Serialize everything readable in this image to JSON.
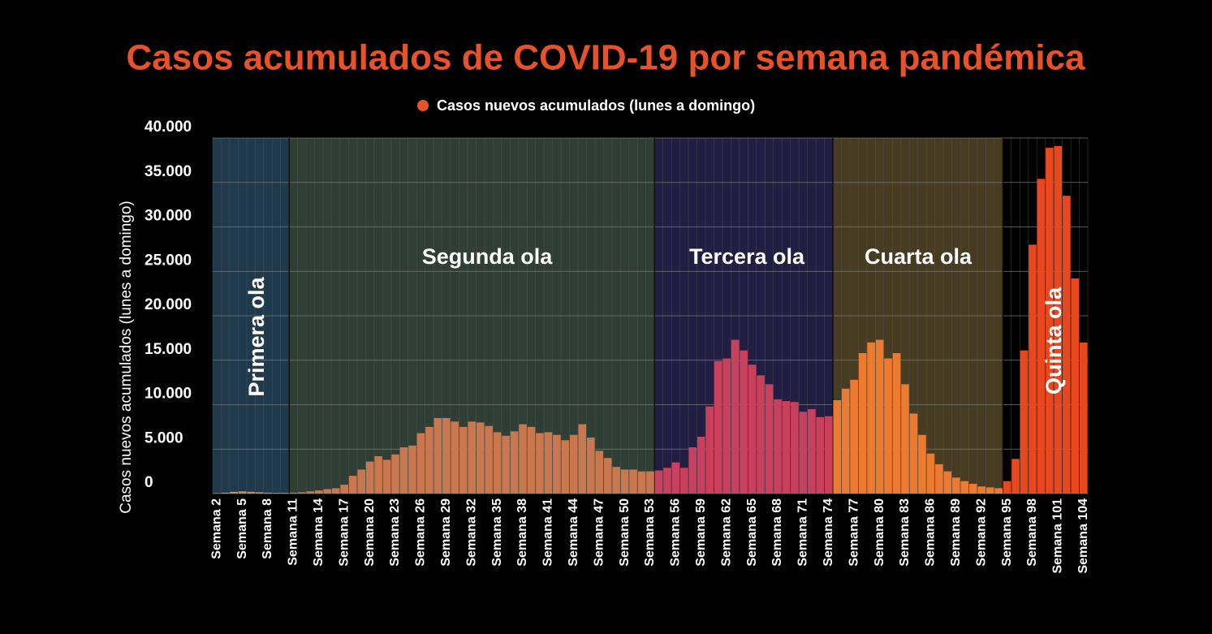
{
  "chart_data": {
    "type": "bar",
    "title": "Casos acumulados de COVID-19 por semana pandémica",
    "y_label": "Casos nuevos acumulados (lunes a domingo)",
    "series": [
      {
        "name": "Casos nuevos acumulados (lunes a domingo)",
        "color": "#e8522a",
        "values": [
          50,
          100,
          200,
          250,
          200,
          150,
          100,
          80,
          80,
          100,
          150,
          250,
          350,
          500,
          600,
          1000,
          2000,
          2700,
          3600,
          4200,
          3800,
          4400,
          5200,
          5400,
          6800,
          7500,
          8500,
          8500,
          8100,
          7500,
          8100,
          8000,
          7600,
          6900,
          6500,
          7000,
          7800,
          7500,
          6800,
          6900,
          6600,
          6000,
          6600,
          7800,
          6300,
          4800,
          4000,
          3000,
          2700,
          2700,
          2500,
          2500,
          2600,
          2900,
          3500,
          2900,
          5200,
          6400,
          9800,
          14900,
          15200,
          17300,
          16100,
          14500,
          13300,
          12300,
          10600,
          10400,
          10300,
          9200,
          9500,
          8600,
          8700,
          10500,
          11800,
          12800,
          15800,
          17000,
          17300,
          15200,
          15800,
          12300,
          9000,
          6600,
          4500,
          3300,
          2500,
          1800,
          1400,
          1100,
          800,
          700,
          600,
          1400,
          3900,
          16100,
          28000,
          35400,
          38900,
          39100,
          33500,
          24200,
          17000
        ]
      }
    ],
    "categories": [
      "Semana 2",
      null,
      null,
      "Semana 5",
      null,
      null,
      "Semana 8",
      null,
      null,
      "Semana 11",
      null,
      null,
      "Semana 14",
      null,
      null,
      "Semana 17",
      null,
      null,
      "Semana 20",
      null,
      null,
      "Semana 23",
      null,
      null,
      "Semana 26",
      null,
      null,
      "Semana 29",
      null,
      null,
      "Semana 32",
      null,
      null,
      "Semana 35",
      null,
      null,
      "Semana 38",
      null,
      null,
      "Semana 41",
      null,
      null,
      "Semana 44",
      null,
      null,
      "Semana 47",
      null,
      null,
      "Semana 50",
      null,
      null,
      "Semana 53",
      null,
      null,
      "Semana 56",
      null,
      null,
      "Semana 59",
      null,
      null,
      "Semana 62",
      null,
      null,
      "Semana 65",
      null,
      null,
      "Semana 68",
      null,
      null,
      "Semana 71",
      null,
      null,
      "Semana 74",
      null,
      null,
      "Semana 77",
      null,
      null,
      "Semana 80",
      null,
      null,
      "Semana 83",
      null,
      null,
      "Semana 86",
      null,
      null,
      "Semana 89",
      null,
      null,
      "Semana 92",
      null,
      null,
      "Semana 95",
      null,
      null,
      "Semana 98",
      null,
      null,
      "Semana 101",
      null,
      null,
      "Semana 104"
    ],
    "waves": [
      {
        "label": "Primera ola",
        "color": "#1f3a4d",
        "bar_color": "#c98a66"
      },
      {
        "label": "Segunda ola",
        "color": "#2f3f35",
        "bar_color": "#c8774e"
      },
      {
        "label": "Tercera ola",
        "color": "#221d42",
        "bar_color": "#c8405c"
      },
      {
        "label": "Cuarta ola",
        "color": "#473c22",
        "bar_color": "#ec7a30"
      },
      {
        "label": "Quinta ola",
        "color": "#000000",
        "bar_color": "#e8481e"
      }
    ],
    "ylim": [
      0,
      40000
    ],
    "yticks": [
      0,
      {
        "value": 5000,
        "label": "5.000"
      },
      {
        "value": 10000,
        "label": "10.000"
      },
      {
        "value": 15000,
        "label": "15.000"
      },
      {
        "value": 20000,
        "label": "20.000"
      },
      {
        "value": 25000,
        "label": "25.000"
      },
      {
        "value": 30000,
        "label": "30.000"
      },
      {
        "value": 35000,
        "label": "35.000"
      },
      {
        "value": 40000,
        "label": "40.000"
      }
    ],
    "grid": true
  }
}
